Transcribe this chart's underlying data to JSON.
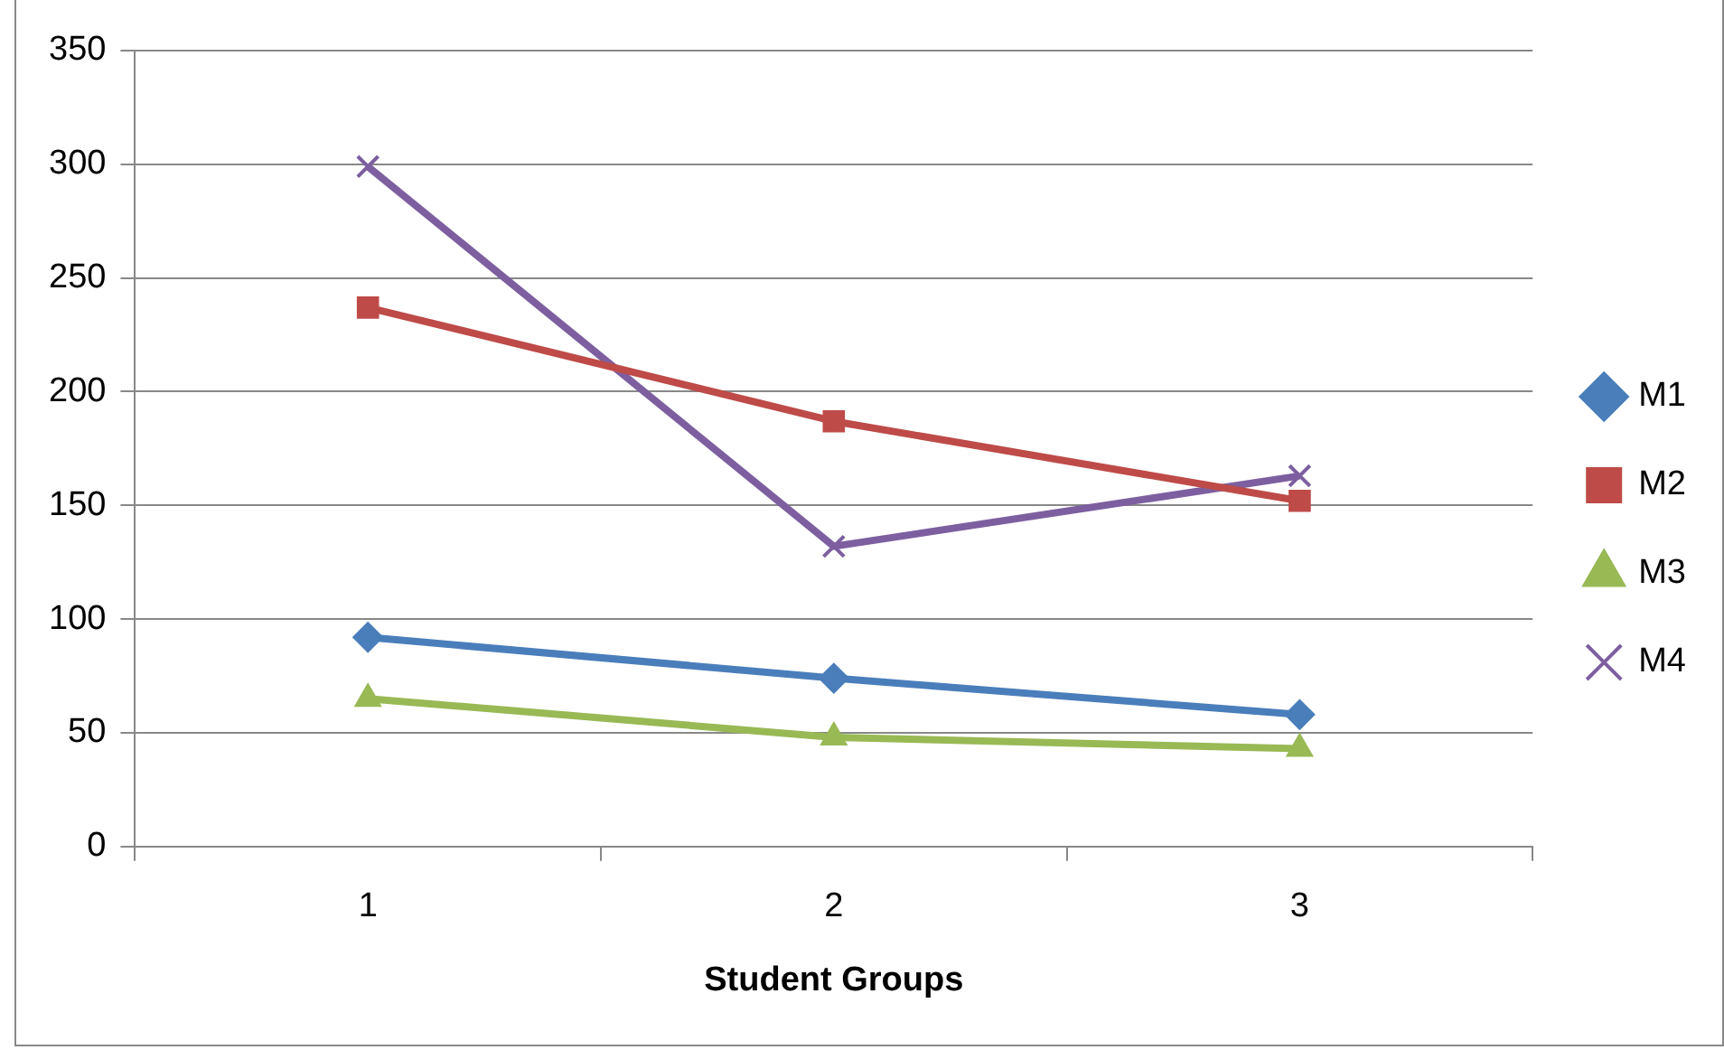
{
  "chart_data": {
    "type": "line",
    "xlabel": "Student Groups",
    "categories": [
      "1",
      "2",
      "3"
    ],
    "series": [
      {
        "name": "M1",
        "color": "#4a7ebb",
        "marker": "diamond",
        "values": [
          92,
          74,
          58
        ]
      },
      {
        "name": "M2",
        "color": "#be4b48",
        "marker": "square",
        "values": [
          237,
          187,
          152
        ]
      },
      {
        "name": "M3",
        "color": "#98b954",
        "marker": "triangle",
        "values": [
          65,
          48,
          43
        ]
      },
      {
        "name": "M4",
        "color": "#7d5fa0",
        "marker": "cross",
        "values": [
          299,
          132,
          163
        ]
      }
    ],
    "ylim": [
      0,
      350
    ],
    "yticks": [
      0,
      50,
      100,
      150,
      200,
      250,
      300,
      350
    ],
    "grid": "y",
    "legend": "right",
    "line_style": "solid"
  }
}
